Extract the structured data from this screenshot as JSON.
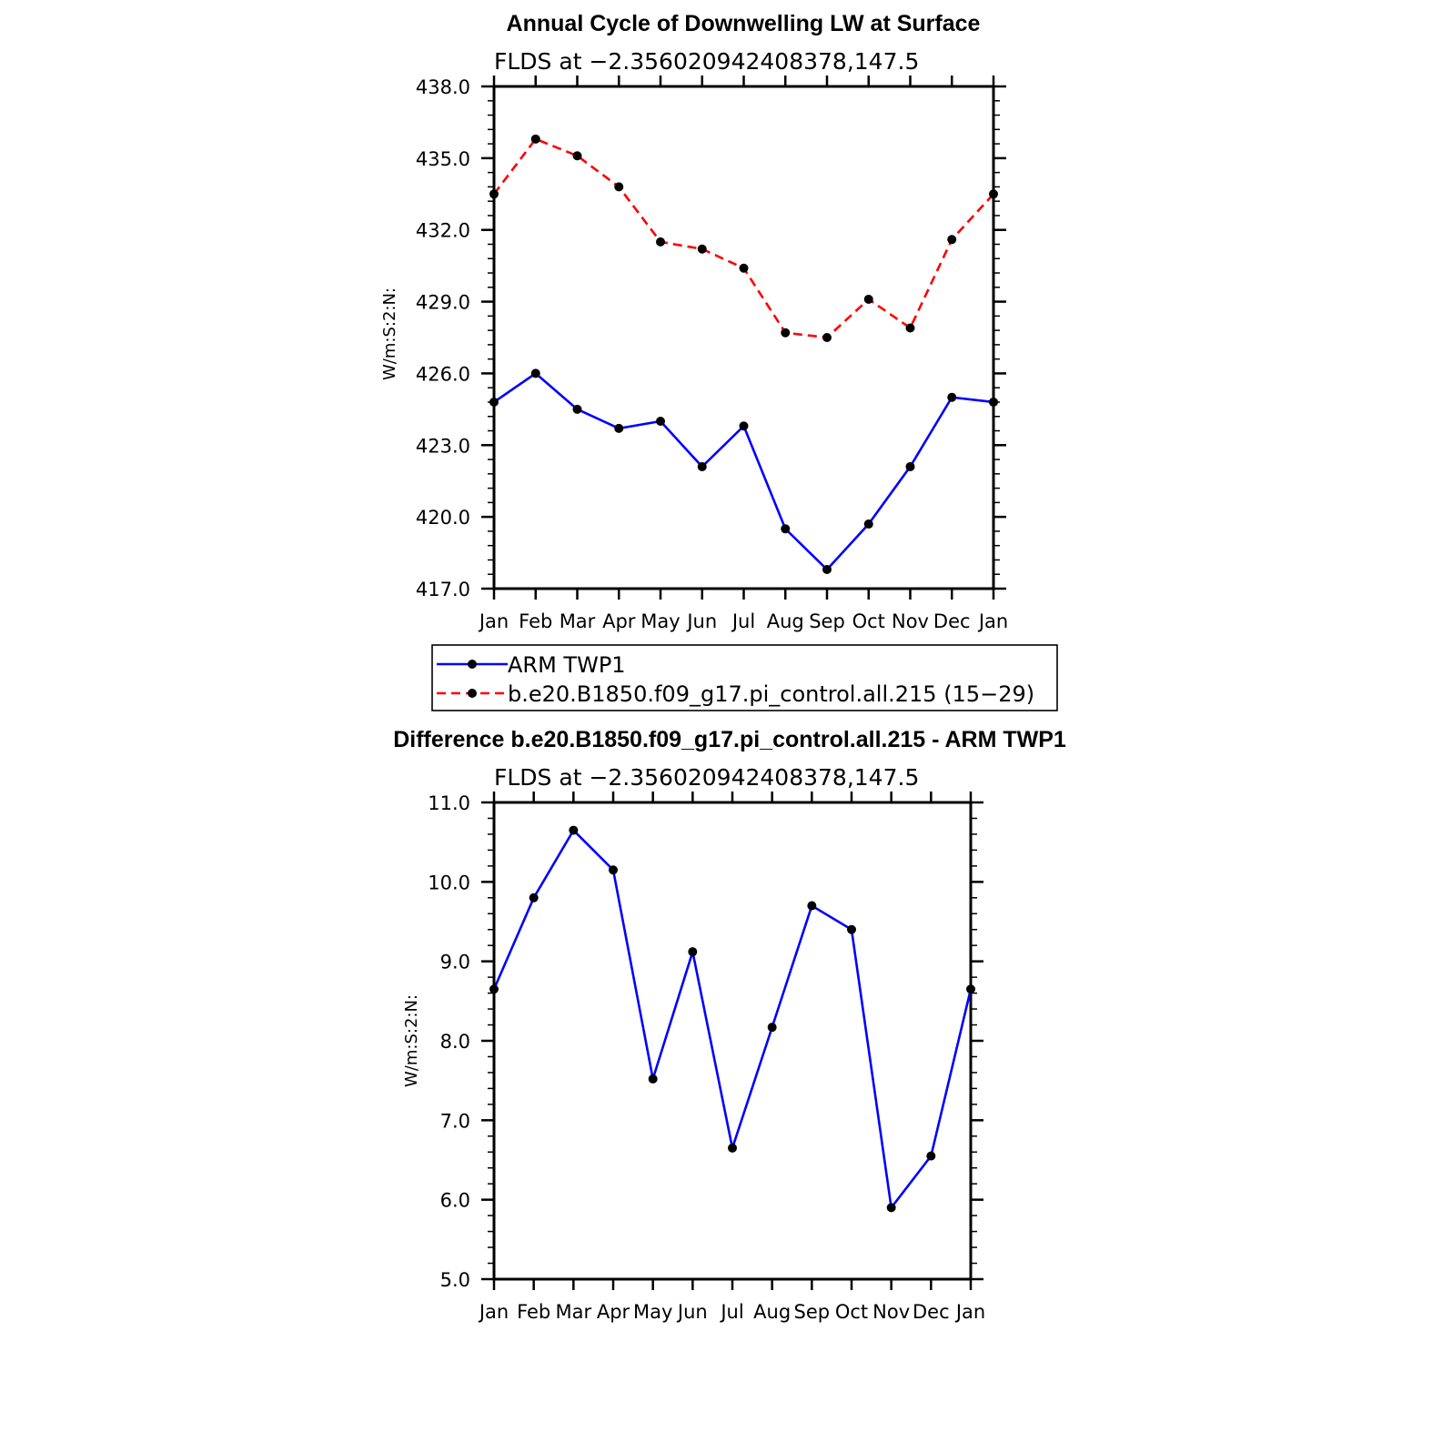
{
  "chart_data": [
    {
      "type": "line",
      "title": "Annual Cycle of Downwelling LW at Surface",
      "subtitle": "FLDS at −2.356020942408378,147.5",
      "ylabel": "W/m:S:2:N:",
      "categories": [
        "Jan",
        "Feb",
        "Mar",
        "Apr",
        "May",
        "Jun",
        "Jul",
        "Aug",
        "Sep",
        "Oct",
        "Nov",
        "Dec",
        "Jan"
      ],
      "ylim": [
        417.0,
        438.0
      ],
      "yticks": [
        "417.0",
        "420.0",
        "423.0",
        "426.0",
        "429.0",
        "432.0",
        "435.0",
        "438.0"
      ],
      "series": [
        {
          "name": "ARM TWP1",
          "color": "#0000ff",
          "dash": "none",
          "values": [
            424.8,
            426.0,
            424.5,
            423.7,
            424.0,
            422.1,
            423.8,
            419.5,
            417.8,
            419.7,
            422.1,
            425.0,
            424.8
          ]
        },
        {
          "name": "b.e20.B1850.f09_g17.pi_control.all.215 (15−29)",
          "color": "#ff0000",
          "dash": "dashed",
          "values": [
            433.5,
            435.8,
            435.1,
            433.8,
            431.5,
            431.2,
            430.4,
            427.7,
            427.5,
            429.1,
            427.9,
            431.6,
            433.5
          ]
        }
      ],
      "legend_placement": "below"
    },
    {
      "type": "line",
      "title": "Difference b.e20.B1850.f09_g17.pi_control.all.215 - ARM TWP1",
      "subtitle": "FLDS at −2.356020942408378,147.5",
      "ylabel": "W/m:S:2:N:",
      "categories": [
        "Jan",
        "Feb",
        "Mar",
        "Apr",
        "May",
        "Jun",
        "Jul",
        "Aug",
        "Sep",
        "Oct",
        "Nov",
        "Dec",
        "Jan"
      ],
      "ylim": [
        5.0,
        11.0
      ],
      "yticks": [
        "5.0",
        "6.0",
        "7.0",
        "8.0",
        "9.0",
        "10.0",
        "11.0"
      ],
      "series": [
        {
          "color": "#0000ff",
          "dash": "none",
          "values": [
            8.65,
            9.8,
            10.65,
            10.15,
            7.52,
            9.12,
            6.65,
            8.17,
            9.7,
            9.4,
            5.9,
            6.55,
            8.65
          ]
        }
      ]
    }
  ]
}
